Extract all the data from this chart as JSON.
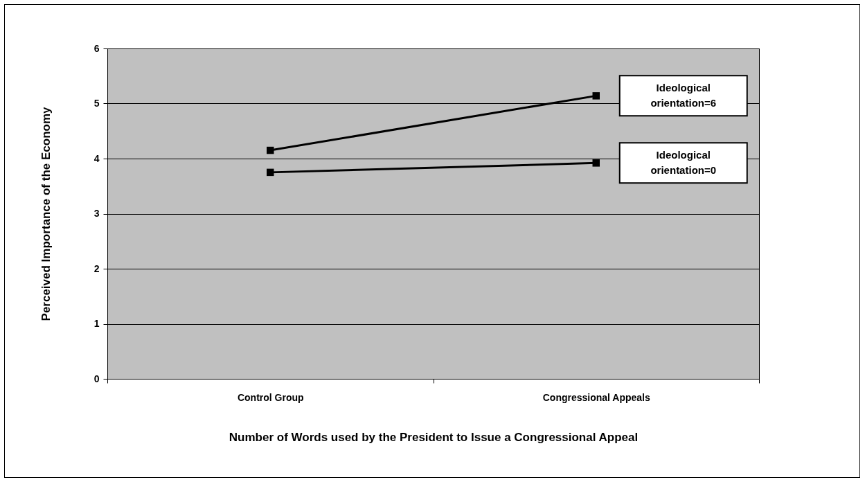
{
  "chart_data": {
    "type": "line",
    "xlabel": "Number of Words used by the President to Issue a Congressional Appeal",
    "ylabel": "Perceived Importance of the Economy",
    "categories": [
      "Control Group",
      "Congressional Appeals"
    ],
    "series": [
      {
        "name": "Ideological orientation=6",
        "color": "#000000",
        "values": [
          4.15,
          5.14
        ]
      },
      {
        "name": "Ideological orientation=0",
        "color": "#000000",
        "values": [
          3.75,
          3.92
        ]
      }
    ],
    "ylim": [
      0,
      6
    ],
    "yticks": [
      0,
      1,
      2,
      3,
      4,
      5,
      6
    ],
    "grid": "y",
    "legend": false,
    "marker": "square",
    "line_style": "solid"
  }
}
